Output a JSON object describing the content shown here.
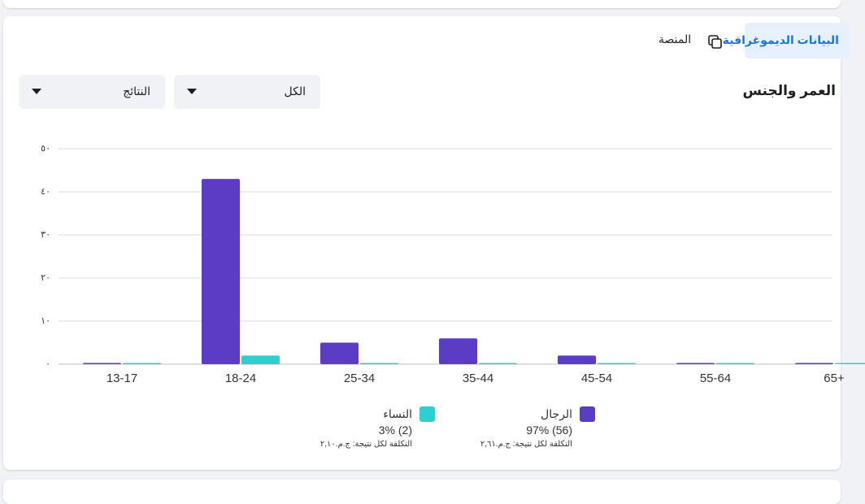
{
  "tabs": [
    "البيانات الديموغرافية",
    "المنصة"
  ],
  "section_title": "العمر والجنس",
  "filters": [
    "الكل",
    "النتائج"
  ],
  "chart_data": {
    "type": "bar",
    "categories": [
      "13-17",
      "18-24",
      "25-34",
      "35-44",
      "45-54",
      "55-64",
      "65+"
    ],
    "series": [
      {
        "name": "الرجال",
        "color": "#5b3cc4",
        "values": [
          0,
          43,
          5,
          6,
          2,
          0,
          0
        ],
        "share_label": "97% (56)",
        "cost_label": "التكلفة لكل نتيجة: ج.م.٢,٦١"
      },
      {
        "name": "النساء",
        "color": "#2fcfcf",
        "values": [
          0,
          2,
          0,
          0,
          0,
          0,
          0
        ],
        "share_label": "3% (2)",
        "cost_label": "التكلفة لكل نتيجة: ج.م.٢,١٠"
      }
    ],
    "ylim": [
      0,
      50
    ],
    "yticks": [
      {
        "value": 0,
        "label": "٠"
      },
      {
        "value": 10,
        "label": "١٠"
      },
      {
        "value": 20,
        "label": "٢٠"
      },
      {
        "value": 30,
        "label": "٣٠"
      },
      {
        "value": 40,
        "label": "٤٠"
      },
      {
        "value": 50,
        "label": "٥٠"
      }
    ],
    "grid": true
  }
}
